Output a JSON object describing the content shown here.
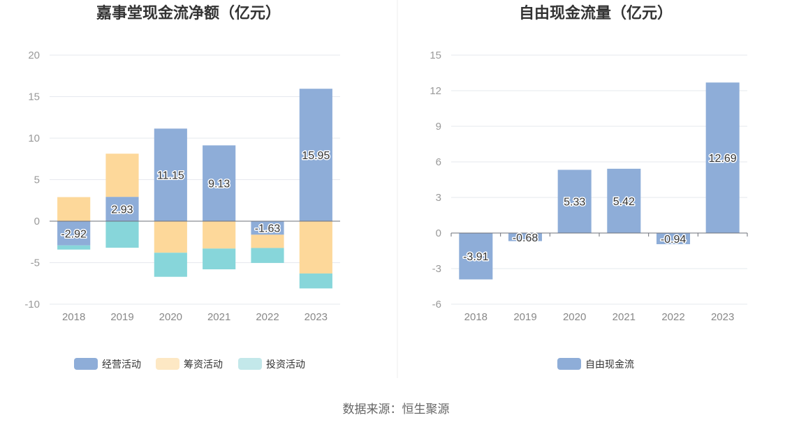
{
  "colors": {
    "operating": "#8eadd8",
    "financing": "#fdd89a",
    "investing": "#87d6da",
    "fcf": "#8eadd8",
    "grid": "#e6e8ee",
    "axis": "#6e7079"
  },
  "chart_data": [
    {
      "type": "bar",
      "stacked": true,
      "title": "嘉事堂现金流净额（亿元）",
      "categories": [
        "2018",
        "2019",
        "2020",
        "2021",
        "2022",
        "2023"
      ],
      "ylim": [
        -10,
        20
      ],
      "yticks": [
        20,
        15,
        10,
        5,
        0,
        -5,
        -10
      ],
      "grid": true,
      "legend_position": "bottom",
      "series": [
        {
          "name": "经营活动",
          "values": [
            -2.92,
            2.93,
            11.15,
            9.13,
            -1.63,
            15.95
          ],
          "labels": [
            "-2.92",
            "2.93",
            "11.15",
            "9.13",
            "-1.63",
            "15.95"
          ]
        },
        {
          "name": "筹资活动",
          "values": [
            2.9,
            5.2,
            -3.8,
            -3.3,
            -1.6,
            -6.3
          ]
        },
        {
          "name": "投资活动",
          "values": [
            -0.5,
            -3.2,
            -2.9,
            -2.5,
            -1.8,
            -1.8
          ]
        }
      ]
    },
    {
      "type": "bar",
      "title": "自由现金流量（亿元）",
      "categories": [
        "2018",
        "2019",
        "2020",
        "2021",
        "2022",
        "2023"
      ],
      "ylim": [
        -6,
        15
      ],
      "yticks": [
        15,
        12,
        9,
        6,
        3,
        0,
        -3,
        -6
      ],
      "grid": true,
      "legend_position": "bottom",
      "series": [
        {
          "name": "自由现金流",
          "values": [
            -3.91,
            -0.68,
            5.33,
            5.42,
            -0.94,
            12.69
          ],
          "labels": [
            "-3.91",
            "-0.68",
            "5.33",
            "5.42",
            "-0.94",
            "12.69"
          ]
        }
      ]
    }
  ],
  "footer": {
    "source": "数据来源：恒生聚源"
  }
}
